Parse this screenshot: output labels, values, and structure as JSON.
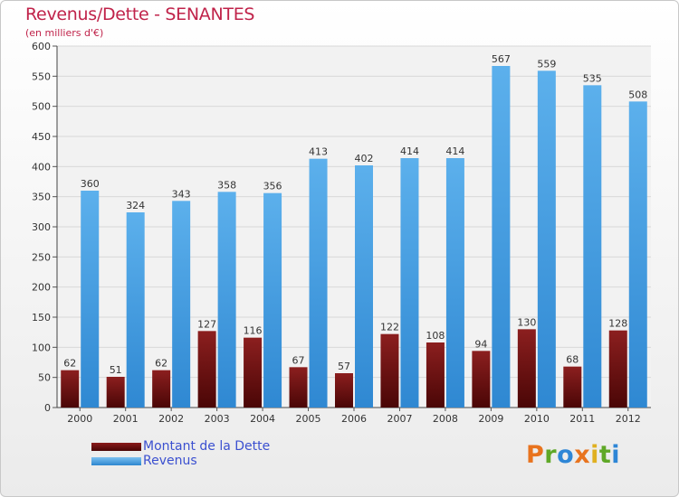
{
  "page": {
    "title": "Revenus/Dette - SENANTES",
    "subtitle": "(en milliers d'€)",
    "brand": "Proxiti"
  },
  "chart_data": {
    "type": "bar",
    "categories": [
      "2000",
      "2001",
      "2002",
      "2003",
      "2004",
      "2005",
      "2006",
      "2007",
      "2008",
      "2009",
      "2010",
      "2011",
      "2012"
    ],
    "series": [
      {
        "name": "Montant de la Dette",
        "color": "#6b0c0c",
        "values": [
          62,
          51,
          62,
          127,
          116,
          67,
          57,
          122,
          108,
          94,
          130,
          68,
          128
        ]
      },
      {
        "name": "Revenus",
        "color": "#4aa3e6",
        "values": [
          360,
          324,
          343,
          358,
          356,
          413,
          402,
          414,
          414,
          567,
          559,
          535,
          508
        ]
      }
    ],
    "ylim": [
      0,
      600
    ],
    "yticks": [
      0,
      50,
      100,
      150,
      200,
      250,
      300,
      350,
      400,
      450,
      500,
      550,
      600
    ],
    "grid": true,
    "legend_position": "bottom-left"
  }
}
